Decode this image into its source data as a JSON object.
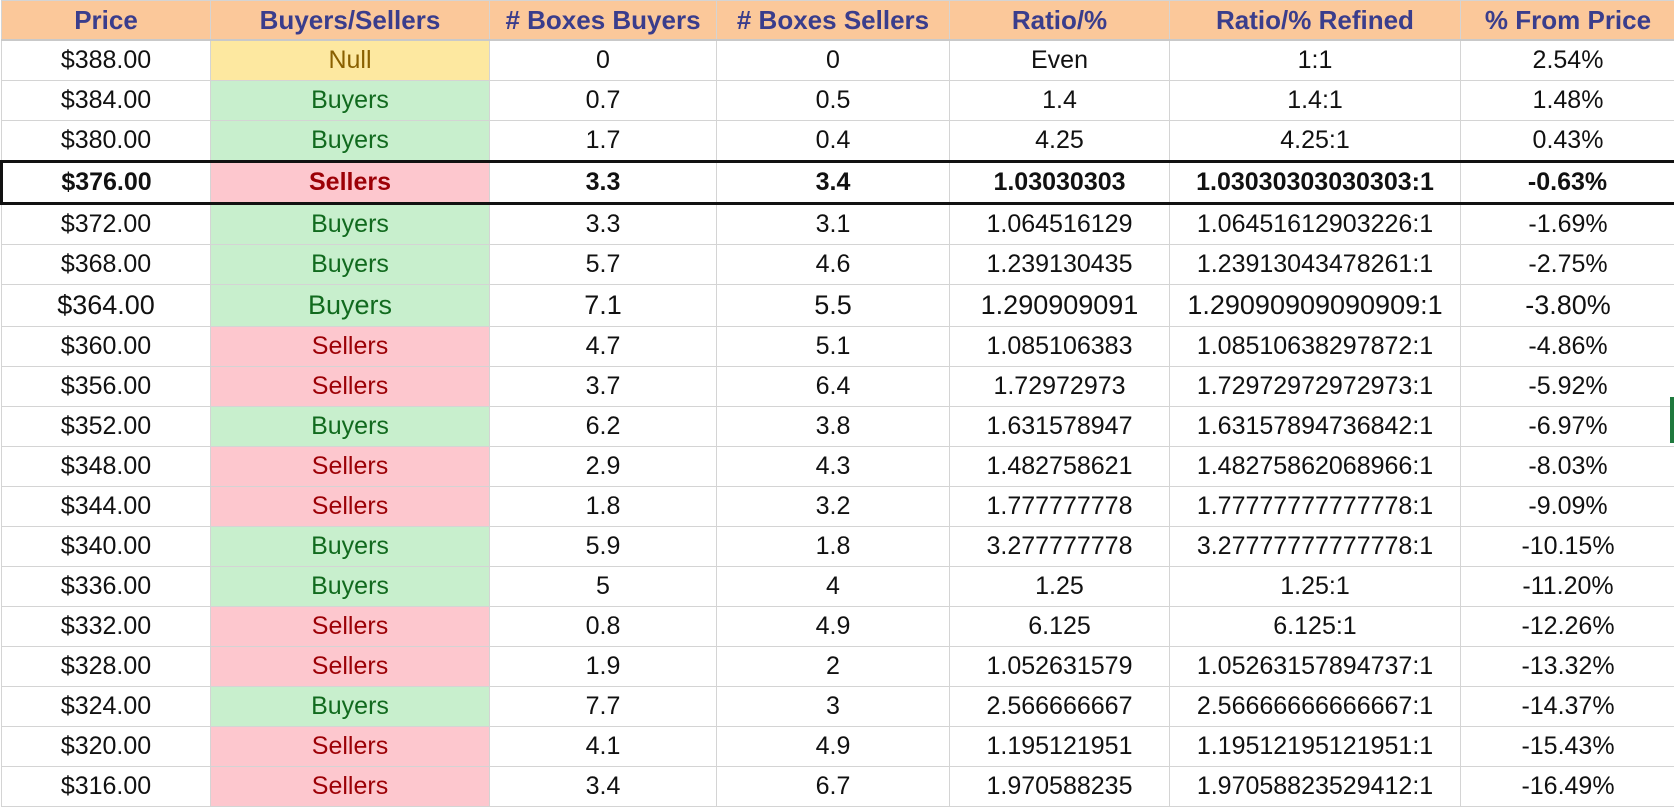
{
  "columns": [
    "Price",
    "Buyers/Sellers",
    "# Boxes Buyers",
    "# Boxes Sellers",
    "Ratio/%",
    "Ratio/% Refined",
    "% From Price"
  ],
  "colors": {
    "header_bg": "#fbc89a",
    "header_text": "#3a3d8c",
    "null_bg": "#fde8a0",
    "buyers_bg": "#c8efcd",
    "sellers_bg": "#fdc7ce"
  },
  "rows": [
    {
      "price": "$388.00",
      "side": "Null",
      "boxes_buyers": "0",
      "boxes_sellers": "0",
      "ratio": "Even",
      "ratio_refined": "1:1",
      "pct_from_price": "2.54%"
    },
    {
      "price": "$384.00",
      "side": "Buyers",
      "boxes_buyers": "0.7",
      "boxes_sellers": "0.5",
      "ratio": "1.4",
      "ratio_refined": "1.4:1",
      "pct_from_price": "1.48%"
    },
    {
      "price": "$380.00",
      "side": "Buyers",
      "boxes_buyers": "1.7",
      "boxes_sellers": "0.4",
      "ratio": "4.25",
      "ratio_refined": "4.25:1",
      "pct_from_price": "0.43%"
    },
    {
      "price": "$376.00",
      "side": "Sellers",
      "boxes_buyers": "3.3",
      "boxes_sellers": "3.4",
      "ratio": "1.03030303",
      "ratio_refined": "1.03030303030303:1",
      "pct_from_price": "-0.63%"
    },
    {
      "price": "$372.00",
      "side": "Buyers",
      "boxes_buyers": "3.3",
      "boxes_sellers": "3.1",
      "ratio": "1.064516129",
      "ratio_refined": "1.06451612903226:1",
      "pct_from_price": "-1.69%"
    },
    {
      "price": "$368.00",
      "side": "Buyers",
      "boxes_buyers": "5.7",
      "boxes_sellers": "4.6",
      "ratio": "1.239130435",
      "ratio_refined": "1.23913043478261:1",
      "pct_from_price": "-2.75%"
    },
    {
      "price": "$364.00",
      "side": "Buyers",
      "boxes_buyers": "7.1",
      "boxes_sellers": "5.5",
      "ratio": "1.290909091",
      "ratio_refined": "1.29090909090909:1",
      "pct_from_price": "-3.80%"
    },
    {
      "price": "$360.00",
      "side": "Sellers",
      "boxes_buyers": "4.7",
      "boxes_sellers": "5.1",
      "ratio": "1.085106383",
      "ratio_refined": "1.08510638297872:1",
      "pct_from_price": "-4.86%"
    },
    {
      "price": "$356.00",
      "side": "Sellers",
      "boxes_buyers": "3.7",
      "boxes_sellers": "6.4",
      "ratio": "1.72972973",
      "ratio_refined": "1.72972972972973:1",
      "pct_from_price": "-5.92%"
    },
    {
      "price": "$352.00",
      "side": "Buyers",
      "boxes_buyers": "6.2",
      "boxes_sellers": "3.8",
      "ratio": "1.631578947",
      "ratio_refined": "1.63157894736842:1",
      "pct_from_price": "-6.97%"
    },
    {
      "price": "$348.00",
      "side": "Sellers",
      "boxes_buyers": "2.9",
      "boxes_sellers": "4.3",
      "ratio": "1.482758621",
      "ratio_refined": "1.48275862068966:1",
      "pct_from_price": "-8.03%"
    },
    {
      "price": "$344.00",
      "side": "Sellers",
      "boxes_buyers": "1.8",
      "boxes_sellers": "3.2",
      "ratio": "1.777777778",
      "ratio_refined": "1.77777777777778:1",
      "pct_from_price": "-9.09%"
    },
    {
      "price": "$340.00",
      "side": "Buyers",
      "boxes_buyers": "5.9",
      "boxes_sellers": "1.8",
      "ratio": "3.277777778",
      "ratio_refined": "3.27777777777778:1",
      "pct_from_price": "-10.15%"
    },
    {
      "price": "$336.00",
      "side": "Buyers",
      "boxes_buyers": "5",
      "boxes_sellers": "4",
      "ratio": "1.25",
      "ratio_refined": "1.25:1",
      "pct_from_price": "-11.20%"
    },
    {
      "price": "$332.00",
      "side": "Sellers",
      "boxes_buyers": "0.8",
      "boxes_sellers": "4.9",
      "ratio": "6.125",
      "ratio_refined": "6.125:1",
      "pct_from_price": "-12.26%"
    },
    {
      "price": "$328.00",
      "side": "Sellers",
      "boxes_buyers": "1.9",
      "boxes_sellers": "2",
      "ratio": "1.052631579",
      "ratio_refined": "1.05263157894737:1",
      "pct_from_price": "-13.32%"
    },
    {
      "price": "$324.00",
      "side": "Buyers",
      "boxes_buyers": "7.7",
      "boxes_sellers": "3",
      "ratio": "2.566666667",
      "ratio_refined": "2.56666666666667:1",
      "pct_from_price": "-14.37%"
    },
    {
      "price": "$320.00",
      "side": "Sellers",
      "boxes_buyers": "4.1",
      "boxes_sellers": "4.9",
      "ratio": "1.195121951",
      "ratio_refined": "1.19512195121951:1",
      "pct_from_price": "-15.43%"
    },
    {
      "price": "$316.00",
      "side": "Sellers",
      "boxes_buyers": "3.4",
      "boxes_sellers": "6.7",
      "ratio": "1.970588235",
      "ratio_refined": "1.97058823529412:1",
      "pct_from_price": "-16.49%"
    }
  ]
}
